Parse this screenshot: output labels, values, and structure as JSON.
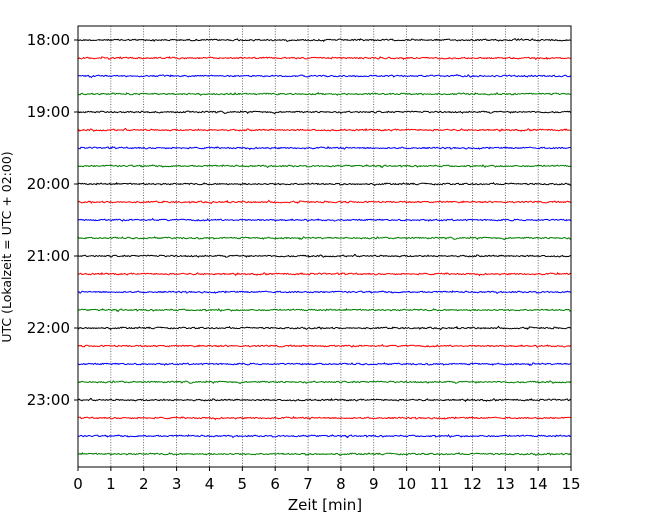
{
  "chart_data": {
    "type": "line",
    "xlabel": "Zeit  [min]",
    "ylabel": "UTC (Lokalzeit = UTC + 02:00)",
    "xlim": [
      0,
      15
    ],
    "x_ticks": [
      0,
      1,
      2,
      3,
      4,
      5,
      6,
      7,
      8,
      9,
      10,
      11,
      12,
      13,
      14,
      15
    ],
    "grid": "vertical dotted",
    "row_interval_minutes": 15,
    "row_start": "18:00",
    "row_end": "23:45",
    "y_tick_labels": [
      "18:00",
      "19:00",
      "20:00",
      "21:00",
      "22:00",
      "23:00"
    ],
    "trace_colors": [
      "#000000",
      "#ff0000",
      "#0000ff",
      "#008000"
    ],
    "series": [
      {
        "start": "18:00",
        "color": "#000000"
      },
      {
        "start": "18:15",
        "color": "#ff0000"
      },
      {
        "start": "18:30",
        "color": "#0000ff"
      },
      {
        "start": "18:45",
        "color": "#008000"
      },
      {
        "start": "19:00",
        "color": "#000000"
      },
      {
        "start": "19:15",
        "color": "#ff0000"
      },
      {
        "start": "19:30",
        "color": "#0000ff"
      },
      {
        "start": "19:45",
        "color": "#008000"
      },
      {
        "start": "20:00",
        "color": "#000000"
      },
      {
        "start": "20:15",
        "color": "#ff0000"
      },
      {
        "start": "20:30",
        "color": "#0000ff"
      },
      {
        "start": "20:45",
        "color": "#008000"
      },
      {
        "start": "21:00",
        "color": "#000000"
      },
      {
        "start": "21:15",
        "color": "#ff0000"
      },
      {
        "start": "21:30",
        "color": "#0000ff"
      },
      {
        "start": "21:45",
        "color": "#008000"
      },
      {
        "start": "22:00",
        "color": "#000000"
      },
      {
        "start": "22:15",
        "color": "#ff0000"
      },
      {
        "start": "22:30",
        "color": "#0000ff"
      },
      {
        "start": "22:45",
        "color": "#008000"
      },
      {
        "start": "23:00",
        "color": "#000000"
      },
      {
        "start": "23:15",
        "color": "#ff0000"
      },
      {
        "start": "23:30",
        "color": "#0000ff"
      },
      {
        "start": "23:45",
        "color": "#008000"
      }
    ]
  }
}
